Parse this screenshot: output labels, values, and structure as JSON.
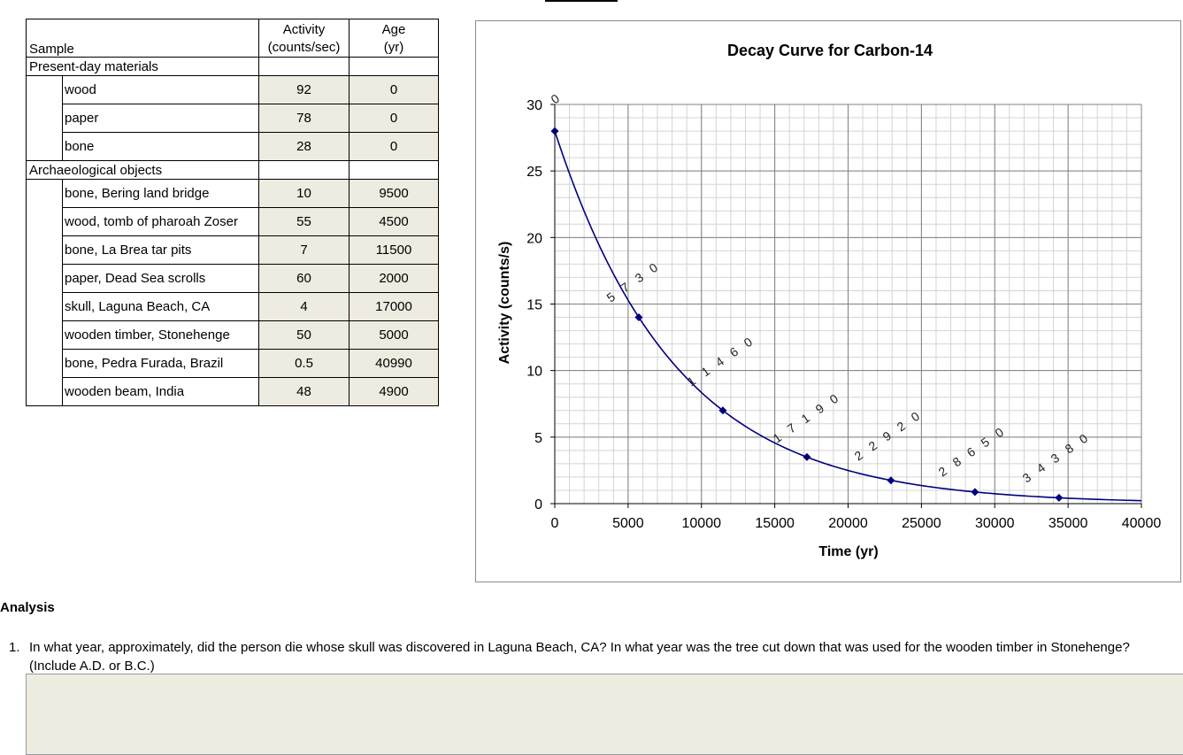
{
  "table": {
    "col_sample": "Sample",
    "col_activity_l1": "Activity",
    "col_activity_l2": "(counts/sec)",
    "col_age_l1": "Age",
    "col_age_l2": "(yr)",
    "group_present": "Present-day materials",
    "present_rows": [
      {
        "name": "wood",
        "activity": "92",
        "age": "0"
      },
      {
        "name": "paper",
        "activity": "78",
        "age": "0"
      },
      {
        "name": "bone",
        "activity": "28",
        "age": "0"
      }
    ],
    "group_arch": "Archaeological objects",
    "arch_rows": [
      {
        "name": "bone, Bering land bridge",
        "activity": "10",
        "age": "9500"
      },
      {
        "name": "wood, tomb of pharoah Zoser",
        "activity": "55",
        "age": "4500"
      },
      {
        "name": "bone, La Brea tar pits",
        "activity": "7",
        "age": "11500"
      },
      {
        "name": "paper, Dead Sea scrolls",
        "activity": "60",
        "age": "2000"
      },
      {
        "name": "skull, Laguna Beach, CA",
        "activity": "4",
        "age": "17000"
      },
      {
        "name": "wooden timber, Stonehenge",
        "activity": "50",
        "age": "5000"
      },
      {
        "name": "bone, Pedra Furada, Brazil",
        "activity": "0.5",
        "age": "40990"
      },
      {
        "name": "wooden beam, India",
        "activity": "48",
        "age": "4900"
      }
    ]
  },
  "chart_data": {
    "type": "line",
    "title": "Decay Curve for Carbon-14",
    "xlabel": "Time (yr)",
    "ylabel": "Activity (counts/s)",
    "xlim": [
      0,
      40000
    ],
    "ylim": [
      0,
      30
    ],
    "x_ticks": [
      "0",
      "5000",
      "10000",
      "15000",
      "20000",
      "25000",
      "30000",
      "35000",
      "40000"
    ],
    "y_ticks": [
      "0",
      "5",
      "10",
      "15",
      "20",
      "25",
      "30"
    ],
    "grid": true,
    "points": [
      {
        "x": 0,
        "y": 28
      },
      {
        "x": 5730,
        "y": 14
      },
      {
        "x": 11460,
        "y": 7
      },
      {
        "x": 17190,
        "y": 3.5
      },
      {
        "x": 22920,
        "y": 1.75
      },
      {
        "x": 28650,
        "y": 0.875
      },
      {
        "x": 34380,
        "y": 0.4375
      }
    ],
    "half_life_yr": 5730,
    "start_activity": 28,
    "line_color": "#00007f",
    "handwritten_annotations": [
      "0",
      "5730",
      "11460",
      "17190",
      "22920",
      "28650",
      "34380"
    ]
  },
  "analysis": {
    "heading": "Analysis",
    "q1_number": "1.",
    "q1_text": "In what year, approximately, did the person die whose skull was discovered in Laguna Beach, CA? In what year was the tree cut down that was used for the wooden timber in Stonehenge? (Include A.D. or B.C.)",
    "answer_value": ""
  },
  "colors": {
    "input_fill": "#eeebe0",
    "curve": "#00007f",
    "grid_major": "#808080",
    "grid_minor": "#d4d4d4"
  }
}
